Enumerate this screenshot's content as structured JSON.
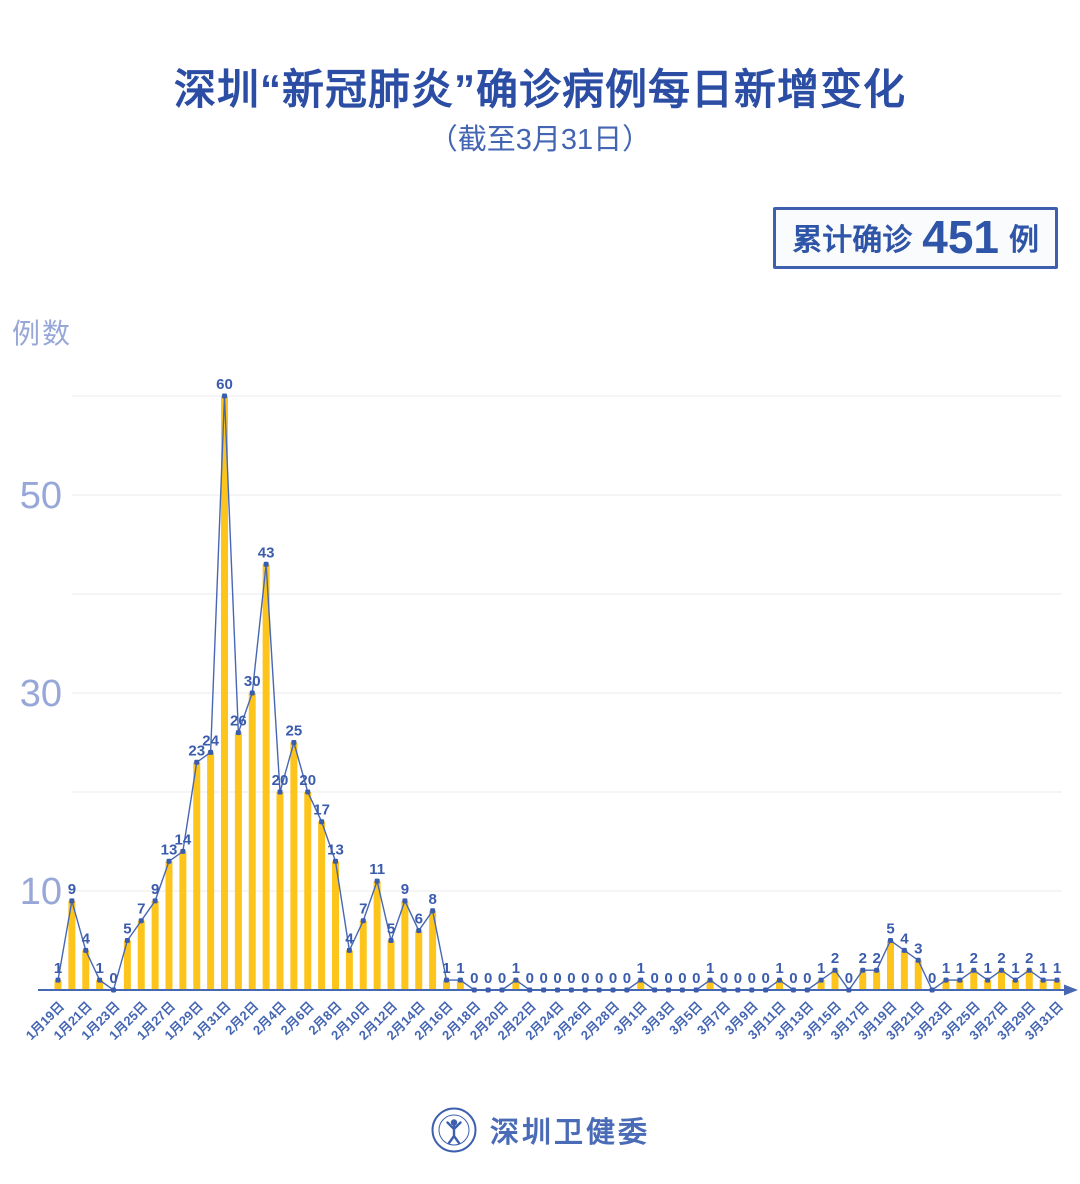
{
  "page": {
    "background": "#ffffff"
  },
  "header": {
    "title": "深圳“新冠肺炎”确诊病例每日新增变化",
    "subtitle": "（截至3月31日）",
    "badge": {
      "prefix": "累计确诊",
      "value": "451",
      "suffix": "例"
    }
  },
  "chart_data": {
    "type": "bar",
    "line_overlay": true,
    "title": "深圳“新冠肺炎”确诊病例每日新增变化（截至3月31日）",
    "xlabel": "",
    "ylabel": "例数",
    "ylim": [
      0,
      62
    ],
    "gridlines": [
      10,
      20,
      30,
      40,
      50,
      60
    ],
    "y_ticks_labeled": [
      50,
      30,
      10
    ],
    "x_tick_step": 2,
    "grid": "horizontal-only",
    "categories": [
      "1月19日",
      "1月20日",
      "1月21日",
      "1月22日",
      "1月23日",
      "1月24日",
      "1月25日",
      "1月26日",
      "1月27日",
      "1月28日",
      "1月29日",
      "1月30日",
      "1月31日",
      "2月1日",
      "2月2日",
      "2月3日",
      "2月4日",
      "2月5日",
      "2月6日",
      "2月7日",
      "2月8日",
      "2月9日",
      "2月10日",
      "2月11日",
      "2月12日",
      "2月13日",
      "2月14日",
      "2月15日",
      "2月16日",
      "2月17日",
      "2月18日",
      "2月19日",
      "2月20日",
      "2月21日",
      "2月22日",
      "2月23日",
      "2月24日",
      "2月25日",
      "2月26日",
      "2月27日",
      "2月28日",
      "2月29日",
      "3月1日",
      "3月2日",
      "3月3日",
      "3月4日",
      "3月5日",
      "3月6日",
      "3月7日",
      "3月8日",
      "3月9日",
      "3月10日",
      "3月11日",
      "3月12日",
      "3月13日",
      "3月14日",
      "3月15日",
      "3月16日",
      "3月17日",
      "3月18日",
      "3月19日",
      "3月20日",
      "3月21日",
      "3月22日",
      "3月23日",
      "3月24日",
      "3月25日",
      "3月26日",
      "3月27日",
      "3月28日",
      "3月29日",
      "3月30日",
      "3月31日"
    ],
    "values": [
      1,
      9,
      4,
      1,
      0,
      5,
      7,
      9,
      13,
      14,
      23,
      24,
      60,
      26,
      30,
      43,
      20,
      25,
      20,
      17,
      13,
      4,
      7,
      11,
      5,
      9,
      6,
      8,
      1,
      1,
      0,
      0,
      0,
      1,
      0,
      0,
      0,
      0,
      0,
      0,
      0,
      0,
      1,
      0,
      0,
      0,
      0,
      1,
      0,
      0,
      0,
      0,
      1,
      0,
      0,
      1,
      2,
      0,
      2,
      2,
      5,
      4,
      3,
      0,
      1,
      1,
      2,
      1,
      2,
      1,
      2,
      1,
      1
    ],
    "colors": {
      "bar": "#FDC51C",
      "line": "#4767B2",
      "point": "#3B5CAD",
      "value_label": "#3B5CAD",
      "axis": "#4767B2",
      "grid": "#EBEBEB",
      "x_tick_label": "#4365B2",
      "y_tick_label": "#97A7D8",
      "title": "#2C4DA4",
      "badge_border": "#3D5FAE"
    }
  },
  "footer": {
    "text": "深圳卫健委",
    "logo": "shenzhen-health-commission-seal"
  }
}
